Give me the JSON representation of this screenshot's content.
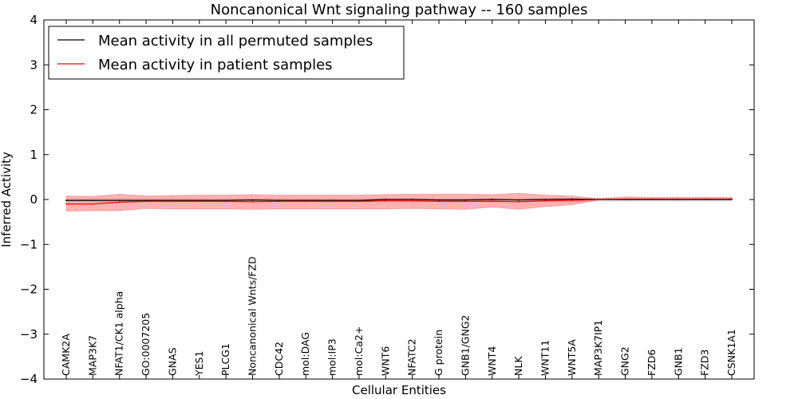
{
  "chart_data": {
    "type": "line",
    "title": "Noncanonical Wnt signaling pathway -- 160 samples",
    "xlabel": "Cellular Entities",
    "ylabel": "Inferred Activity",
    "ylim": [
      -4,
      4
    ],
    "yticks": [
      "4",
      "3",
      "2",
      "1",
      "0",
      "−1",
      "−2",
      "−3",
      "−4"
    ],
    "ytick_values": [
      4,
      3,
      2,
      1,
      0,
      -1,
      -2,
      -3,
      -4
    ],
    "categories": [
      "CAMK2A",
      "MAP3K7",
      "NFAT1/CK1 alpha",
      "GO:0007205",
      "GNAS",
      "YES1",
      "PLCG1",
      "Noncanonical Wnts/FZD",
      "CDC42",
      "mol:DAG",
      "mol:IP3",
      "mol:Ca2+",
      "WNT6",
      "NFATC2",
      "G protein",
      "GNB1/GNG2",
      "WNT4",
      "NLK",
      "WNT11",
      "WNT5A",
      "MAP3K7IP1",
      "GNG2",
      "FZD6",
      "GNB1",
      "FZD3",
      "CSNK1A1"
    ],
    "series": [
      {
        "name": "Mean activity in all permuted samples",
        "color": "#000000",
        "values": [
          -0.02,
          -0.02,
          -0.02,
          -0.02,
          -0.02,
          -0.02,
          -0.02,
          -0.01,
          -0.02,
          -0.02,
          -0.02,
          -0.02,
          0.0,
          0.0,
          -0.01,
          -0.01,
          0.0,
          -0.01,
          0.0,
          0.01,
          0.0,
          0.0,
          0.0,
          0.0,
          0.0,
          0.0
        ],
        "upper": [
          0.03,
          0.03,
          0.03,
          0.03,
          0.03,
          0.03,
          0.03,
          0.03,
          0.03,
          0.03,
          0.03,
          0.03,
          0.03,
          0.03,
          0.03,
          0.03,
          0.03,
          0.03,
          0.03,
          0.03,
          0.03,
          0.03,
          0.03,
          0.03,
          0.03,
          0.03
        ],
        "lower": [
          -0.06,
          -0.06,
          -0.06,
          -0.06,
          -0.06,
          -0.06,
          -0.06,
          -0.06,
          -0.06,
          -0.06,
          -0.06,
          -0.06,
          -0.06,
          -0.06,
          -0.06,
          -0.06,
          -0.06,
          -0.06,
          -0.06,
          -0.06,
          -0.05,
          -0.05,
          -0.05,
          -0.05,
          -0.05,
          -0.05
        ]
      },
      {
        "name": "Mean activity in patient samples",
        "color": "#ff0000",
        "values": [
          -0.1,
          -0.1,
          -0.06,
          -0.04,
          -0.04,
          -0.04,
          -0.04,
          -0.05,
          -0.04,
          -0.04,
          -0.04,
          -0.04,
          -0.03,
          -0.03,
          -0.04,
          -0.04,
          -0.04,
          -0.05,
          -0.03,
          -0.02,
          0.0,
          0.01,
          0.01,
          0.01,
          0.01,
          0.01
        ],
        "upper": [
          0.08,
          0.07,
          0.12,
          0.08,
          0.09,
          0.1,
          0.1,
          0.11,
          0.1,
          0.1,
          0.1,
          0.1,
          0.11,
          0.12,
          0.12,
          0.12,
          0.11,
          0.14,
          0.1,
          0.08,
          0.02,
          0.06,
          0.05,
          0.05,
          0.05,
          0.05
        ],
        "lower": [
          -0.26,
          -0.25,
          -0.25,
          -0.2,
          -0.21,
          -0.21,
          -0.21,
          -0.22,
          -0.21,
          -0.21,
          -0.21,
          -0.21,
          -0.21,
          -0.2,
          -0.21,
          -0.22,
          -0.17,
          -0.22,
          -0.16,
          -0.12,
          -0.01,
          -0.01,
          -0.01,
          -0.01,
          -0.01,
          -0.01
        ]
      }
    ],
    "band_color": "#ff0000",
    "legend": {
      "entries": [
        "Mean activity in all permuted samples",
        "Mean activity in patient samples"
      ],
      "position": "top-left"
    }
  }
}
